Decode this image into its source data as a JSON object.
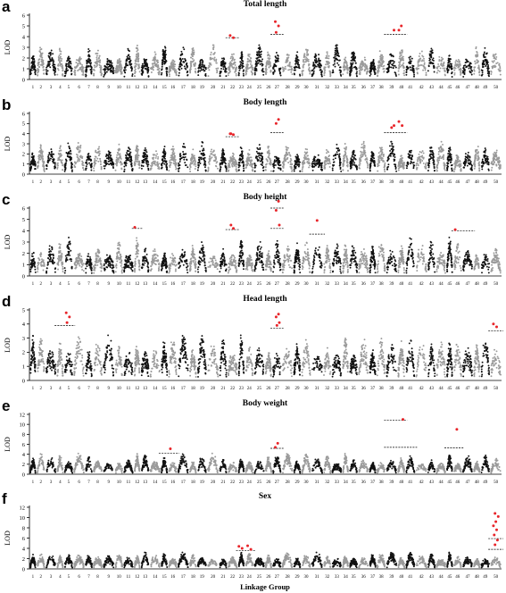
{
  "chart_data": [
    {
      "panel": "a",
      "title": "Total length",
      "type": "scatter",
      "ylabel": "LOD",
      "ylim": [
        0,
        6
      ],
      "yticks": [
        0,
        1,
        2,
        3,
        4,
        5,
        6
      ],
      "point_ymax": 3.2,
      "significant": [
        {
          "lg": 22,
          "lod": 4.1
        },
        {
          "lg": 22,
          "lod": 3.9
        },
        {
          "lg": 27,
          "lod": 5.4
        },
        {
          "lg": 27,
          "lod": 5.0
        },
        {
          "lg": 27,
          "lod": 4.4
        },
        {
          "lg": 39,
          "lod": 4.6
        },
        {
          "lg": 40,
          "lod": 5.0
        },
        {
          "lg": 40,
          "lod": 4.6
        }
      ],
      "thresholds": [
        {
          "lg_from": 22,
          "lg_to": 22,
          "lod": 3.9
        },
        {
          "lg_from": 27,
          "lg_to": 27,
          "lod": 4.2
        },
        {
          "lg_from": 39,
          "lg_to": 40,
          "lod": 4.2
        }
      ]
    },
    {
      "panel": "b",
      "title": "Body length",
      "type": "scatter",
      "ylabel": "LOD",
      "ylim": [
        0,
        6
      ],
      "yticks": [
        0,
        1,
        2,
        3,
        4,
        5,
        6
      ],
      "point_ymax": 3.2,
      "significant": [
        {
          "lg": 22,
          "lod": 4.0
        },
        {
          "lg": 22,
          "lod": 3.9
        },
        {
          "lg": 22,
          "lod": 4.0
        },
        {
          "lg": 27,
          "lod": 5.4
        },
        {
          "lg": 27,
          "lod": 5.0
        },
        {
          "lg": 39,
          "lod": 4.8
        },
        {
          "lg": 39,
          "lod": 4.6
        },
        {
          "lg": 40,
          "lod": 5.2
        },
        {
          "lg": 40,
          "lod": 4.8
        }
      ],
      "thresholds": [
        {
          "lg_from": 22,
          "lg_to": 22,
          "lod": 3.7
        },
        {
          "lg_from": 27,
          "lg_to": 27,
          "lod": 4.1
        },
        {
          "lg_from": 39,
          "lg_to": 40,
          "lod": 4.1
        }
      ]
    },
    {
      "panel": "c",
      "title": "Body height",
      "type": "scatter",
      "ylabel": "LOD",
      "ylim": [
        0,
        6
      ],
      "yticks": [
        0,
        1,
        2,
        3,
        4,
        5,
        6
      ],
      "point_ymax": 3.4,
      "significant": [
        {
          "lg": 12,
          "lod": 4.3
        },
        {
          "lg": 22,
          "lod": 4.2
        },
        {
          "lg": 22,
          "lod": 4.5
        },
        {
          "lg": 27,
          "lod": 6.6
        },
        {
          "lg": 27,
          "lod": 5.8
        },
        {
          "lg": 27,
          "lod": 4.5
        },
        {
          "lg": 31,
          "lod": 4.9
        },
        {
          "lg": 46,
          "lod": 4.1
        }
      ],
      "thresholds": [
        {
          "lg_from": 12,
          "lg_to": 12,
          "lod": 4.2
        },
        {
          "lg_from": 22,
          "lg_to": 22,
          "lod": 4.1
        },
        {
          "lg_from": 27,
          "lg_to": 27,
          "lod": 6.0
        },
        {
          "lg_from": 27,
          "lg_to": 27,
          "lod": 4.2
        },
        {
          "lg_from": 31,
          "lg_to": 31,
          "lod": 3.7
        },
        {
          "lg_from": 46,
          "lg_to": 47,
          "lod": 4.0
        }
      ]
    },
    {
      "panel": "d",
      "title": "Head length",
      "type": "scatter",
      "ylabel": "LOD",
      "ylim": [
        0,
        5
      ],
      "yticks": [
        0,
        1,
        2,
        3,
        4,
        5
      ],
      "point_ymax": 3.2,
      "significant": [
        {
          "lg": 5,
          "lod": 4.8
        },
        {
          "lg": 5,
          "lod": 4.5
        },
        {
          "lg": 5,
          "lod": 4.1
        },
        {
          "lg": 27,
          "lod": 4.7
        },
        {
          "lg": 27,
          "lod": 4.5
        },
        {
          "lg": 27,
          "lod": 4.1
        },
        {
          "lg": 27,
          "lod": 3.9
        },
        {
          "lg": 50,
          "lod": 4.0
        },
        {
          "lg": 50,
          "lod": 3.8
        }
      ],
      "thresholds": [
        {
          "lg_from": 4,
          "lg_to": 5,
          "lod": 3.9
        },
        {
          "lg_from": 27,
          "lg_to": 27,
          "lod": 3.7
        },
        {
          "lg_from": 50,
          "lg_to": 50,
          "lod": 3.5
        }
      ]
    },
    {
      "panel": "e",
      "title": "Body weight",
      "type": "scatter",
      "ylabel": "LOD",
      "ylim": [
        0,
        12
      ],
      "yticks": [
        0,
        2,
        4,
        6,
        8,
        10,
        12
      ],
      "point_ymax": 4.5,
      "significant": [
        {
          "lg": 16,
          "lod": 5.1
        },
        {
          "lg": 27,
          "lod": 6.2
        },
        {
          "lg": 27,
          "lod": 5.4
        },
        {
          "lg": 40,
          "lod": 11.0
        },
        {
          "lg": 46,
          "lod": 9.0
        }
      ],
      "thresholds": [
        {
          "lg_from": 15,
          "lg_to": 16,
          "lod": 4.2
        },
        {
          "lg_from": 27,
          "lg_to": 27,
          "lod": 5.2
        },
        {
          "lg_from": 39,
          "lg_to": 40,
          "lod": 10.8
        },
        {
          "lg_from": 39,
          "lg_to": 41,
          "lod": 5.4
        },
        {
          "lg_from": 45,
          "lg_to": 46,
          "lod": 5.3
        }
      ]
    },
    {
      "panel": "f",
      "title": "Sex",
      "type": "scatter",
      "ylabel": "LOD",
      "ylim": [
        0,
        12
      ],
      "yticks": [
        0,
        2,
        4,
        6,
        8,
        10,
        12
      ],
      "point_ymax": 3.2,
      "significant": [
        {
          "lg": 23,
          "lod": 4.4
        },
        {
          "lg": 23,
          "lod": 4.0
        },
        {
          "lg": 24,
          "lod": 4.5
        },
        {
          "lg": 24,
          "lod": 3.8
        },
        {
          "lg": 50,
          "lod": 10.8
        },
        {
          "lg": 50,
          "lod": 10.2
        },
        {
          "lg": 50,
          "lod": 9.2
        },
        {
          "lg": 50,
          "lod": 8.4
        },
        {
          "lg": 50,
          "lod": 7.6
        },
        {
          "lg": 50,
          "lod": 6.6
        },
        {
          "lg": 50,
          "lod": 5.6
        },
        {
          "lg": 50,
          "lod": 4.7
        }
      ],
      "thresholds": [
        {
          "lg_from": 23,
          "lg_to": 24,
          "lod": 3.6
        },
        {
          "lg_from": 50,
          "lg_to": 50,
          "lod": 5.9
        },
        {
          "lg_from": 50,
          "lg_to": 50,
          "lod": 3.8
        }
      ]
    }
  ],
  "linkage_groups": [
    "1",
    "2",
    "3",
    "4",
    "5",
    "6",
    "7",
    "8",
    "9",
    "10",
    "11",
    "12",
    "13",
    "14",
    "15",
    "16",
    "17",
    "18",
    "19",
    "20",
    "21",
    "22",
    "23",
    "24",
    "25",
    "26",
    "27",
    "28",
    "29",
    "30",
    "31",
    "32",
    "33",
    "34",
    "35",
    "36",
    "37",
    "38",
    "39",
    "40",
    "41",
    "42",
    "43",
    "44",
    "45",
    "46",
    "47",
    "48",
    "49",
    "50"
  ],
  "xlabel": "Linkage Group",
  "colors": {
    "odd_group": "#111111",
    "even_group": "#9a9a9a",
    "significant": "#e8252a"
  }
}
